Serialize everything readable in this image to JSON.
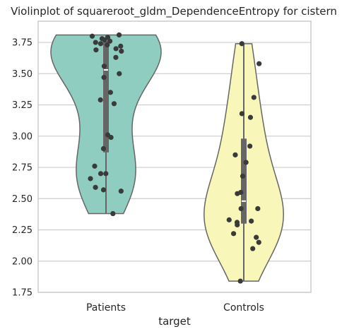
{
  "chart_data": {
    "type": "violin",
    "title": "Violinplot of squareroot_gldm_DependenceEntropy for cistern",
    "xlabel": "target",
    "ylabel": "",
    "ylim": [
      1.75,
      3.92
    ],
    "yticks": [
      "1.75",
      "2.00",
      "2.25",
      "2.50",
      "2.75",
      "3.00",
      "3.25",
      "3.50",
      "3.75"
    ],
    "grid": true,
    "categories": [
      "Patients",
      "Controls"
    ],
    "colors": {
      "Patients": "#8ecdc0",
      "Controls": "#f8f7b9",
      "outline": "#666666",
      "points": "#3a3a3a",
      "box": "#666666",
      "grid": "#cccccc",
      "median": "#ffffff"
    },
    "series": [
      {
        "category": "Patients",
        "range": [
          2.38,
          3.81
        ],
        "box": {
          "q1": 2.87,
          "median": 3.53,
          "q3": 3.76
        },
        "points": [
          3.81,
          3.8,
          3.79,
          3.78,
          3.77,
          3.76,
          3.75,
          3.74,
          3.73,
          3.72,
          3.7,
          3.69,
          3.68,
          3.63,
          3.56,
          3.5,
          3.47,
          3.35,
          3.29,
          3.26,
          3.01,
          2.99,
          2.9,
          2.76,
          2.7,
          2.7,
          2.66,
          2.59,
          2.57,
          2.56,
          2.38
        ]
      },
      {
        "category": "Controls",
        "range": [
          1.84,
          3.74
        ],
        "box": {
          "q1": 2.3,
          "median": 2.48,
          "q3": 2.98
        },
        "points": [
          3.74,
          3.58,
          3.31,
          3.18,
          3.15,
          2.92,
          2.85,
          2.79,
          2.68,
          2.55,
          2.54,
          2.42,
          2.42,
          2.33,
          2.32,
          2.31,
          2.29,
          2.22,
          2.19,
          2.15,
          2.1,
          1.84
        ]
      }
    ]
  }
}
